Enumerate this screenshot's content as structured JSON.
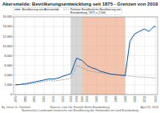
{
  "chart_data": {
    "type": "line",
    "title": "Akersmelde: Bevölkerungsentwicklung seit 1875 - Grenzen von 2019",
    "x": [
      1875,
      1880,
      1885,
      1890,
      1895,
      1900,
      1905,
      1910,
      1915,
      1920,
      1925,
      1930,
      1933,
      1939,
      1945,
      1950,
      1955,
      1960,
      1964,
      1970,
      1975,
      1980,
      1985,
      1990,
      1995,
      2000,
      2005,
      2010,
      2015,
      2020,
      2022
    ],
    "series": [
      {
        "name": "Bevölkerung von Akersmelde",
        "color": "#0055aa",
        "line_style": "solid",
        "values": [
          2000,
          2100,
          2200,
          2400,
          2600,
          2800,
          3000,
          3200,
          3200,
          3400,
          3800,
          4100,
          4300,
          7500,
          7000,
          6000,
          5500,
          5200,
          4800,
          4500,
          4200,
          4100,
          4000,
          3900,
          11000,
          12500,
          13000,
          13500,
          13000,
          14000,
          14000
        ]
      },
      {
        "name": "Relative Bevölkerliche Bevölkerung von\nBrandenburg, 1875 = 2.000",
        "color": "#888888",
        "line_style": "dashed",
        "values": [
          2000,
          2050,
          2100,
          2200,
          2350,
          2500,
          2700,
          2900,
          2800,
          2900,
          3100,
          3200,
          3400,
          6000,
          5500,
          5000,
          4800,
          4600,
          4500,
          4300,
          4200,
          4100,
          4000,
          3900,
          3800,
          3700,
          3600,
          3600,
          3500,
          3450,
          3400
        ]
      }
    ],
    "spans": [
      {
        "start": 1933,
        "end": 1945,
        "color": "#c8c8c8"
      },
      {
        "start": 1945,
        "end": 1990,
        "color": "#f0b090"
      }
    ],
    "xlim": [
      1873,
      2024
    ],
    "xticks": [
      1875,
      1885,
      1895,
      1905,
      1915,
      1925,
      1933,
      1939,
      1945,
      1950,
      1960,
      1970,
      1980,
      1990,
      2000,
      2010,
      2022
    ],
    "ylim": [
      0,
      16000
    ],
    "yticks": [
      0,
      {
        "value": 2000,
        "label": "2.000"
      },
      {
        "value": 4000,
        "label": "4.000"
      },
      {
        "value": 6000,
        "label": "6.000"
      },
      {
        "value": 8000,
        "label": "8.000"
      },
      {
        "value": 10000,
        "label": "10.000"
      },
      {
        "value": 12000,
        "label": "12.000"
      },
      {
        "value": 14000,
        "label": "14.000"
      },
      {
        "value": 16000,
        "label": "16.000"
      }
    ],
    "grid": true,
    "legend": "upper left",
    "annotations": [
      "By: Denis G. Otiashvili",
      "Sources: vom Die Statistik Berlin-Brandenburg,\nStatistisches Landesamt historische von Bevölkerung der Gemeinden im Land Brandenburg",
      "April 20, 2024"
    ]
  }
}
